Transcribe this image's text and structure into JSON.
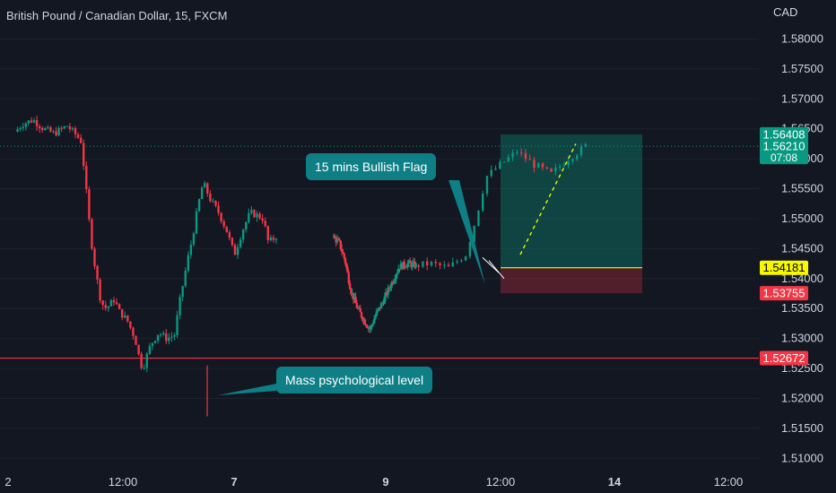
{
  "header": {
    "symbol_title": "British Pound / Canadian Dollar, 15, FXCM",
    "currency": "CAD"
  },
  "chart_data": {
    "type": "candlestick",
    "title": "British Pound / Canadian Dollar, 15, FXCM",
    "y_unit": "CAD",
    "ylim": [
      1.5075,
      1.5865
    ],
    "y_ticks": [
      "1.58000",
      "1.57500",
      "1.57000",
      "1.56500",
      "1.56000",
      "1.55500",
      "1.55000",
      "1.54500",
      "1.54000",
      "1.53500",
      "1.53000",
      "1.52500",
      "1.52000",
      "1.51500",
      "1.51000"
    ],
    "x_ticks": [
      "2",
      "12:00",
      "7",
      "9",
      "12:00",
      "14",
      "12:00"
    ],
    "price_path": [
      {
        "p": 0.0,
        "v": 1.5645
      },
      {
        "p": 0.03,
        "v": 1.5658
      },
      {
        "p": 0.07,
        "v": 1.5665
      },
      {
        "p": 0.11,
        "v": 1.565
      },
      {
        "p": 0.15,
        "v": 1.5642
      },
      {
        "p": 0.2,
        "v": 1.5655
      },
      {
        "p": 0.24,
        "v": 1.5637
      },
      {
        "p": 0.255,
        "v": 1.5628
      },
      {
        "p": 0.27,
        "v": 1.556
      },
      {
        "p": 0.29,
        "v": 1.547
      },
      {
        "p": 0.31,
        "v": 1.541
      },
      {
        "p": 0.33,
        "v": 1.536
      },
      {
        "p": 0.35,
        "v": 1.535
      },
      {
        "p": 0.38,
        "v": 1.5365
      },
      {
        "p": 0.4,
        "v": 1.5345
      },
      {
        "p": 0.43,
        "v": 1.533
      },
      {
        "p": 0.46,
        "v": 1.53
      },
      {
        "p": 0.48,
        "v": 1.526
      },
      {
        "p": 0.49,
        "v": 1.525
      },
      {
        "p": 0.5,
        "v": 1.5265
      },
      {
        "p": 0.52,
        "v": 1.529
      },
      {
        "p": 0.55,
        "v": 1.531
      },
      {
        "p": 0.58,
        "v": 1.53
      },
      {
        "p": 0.61,
        "v": 1.5305
      },
      {
        "p": 0.63,
        "v": 1.536
      },
      {
        "p": 0.66,
        "v": 1.543
      },
      {
        "p": 0.68,
        "v": 1.547
      },
      {
        "p": 0.7,
        "v": 1.552
      },
      {
        "p": 0.72,
        "v": 1.556
      },
      {
        "p": 0.75,
        "v": 1.553
      },
      {
        "p": 0.78,
        "v": 1.551
      },
      {
        "p": 0.81,
        "v": 1.548
      },
      {
        "p": 0.84,
        "v": 1.544
      },
      {
        "p": 0.87,
        "v": 1.548
      },
      {
        "p": 0.9,
        "v": 1.551
      },
      {
        "p": 0.93,
        "v": 1.5505
      },
      {
        "p": 0.95,
        "v": 1.55
      },
      {
        "p": 0.97,
        "v": 1.546
      },
      {
        "p": 1.0,
        "v": 1.547
      }
    ],
    "segments": [
      {
        "start": "2024-02-02T01:00",
        "end": "2024-02-06T18:00",
        "count": 95,
        "points": "p"
      },
      {
        "start": "2024-02-07T18:00",
        "end": "2024-02-09T06:00",
        "count": 72,
        "path": [
          {
            "p": 0.0,
            "v": 1.547
          },
          {
            "p": 0.08,
            "v": 1.546
          },
          {
            "p": 0.15,
            "v": 1.543
          },
          {
            "p": 0.22,
            "v": 1.538
          },
          {
            "p": 0.3,
            "v": 1.535
          },
          {
            "p": 0.38,
            "v": 1.533
          },
          {
            "p": 0.45,
            "v": 1.5315
          },
          {
            "p": 0.52,
            "v": 1.534
          },
          {
            "p": 0.6,
            "v": 1.536
          },
          {
            "p": 0.7,
            "v": 1.539
          },
          {
            "p": 0.8,
            "v": 1.542
          },
          {
            "p": 0.9,
            "v": 1.5425
          },
          {
            "p": 1.0,
            "v": 1.5422
          }
        ]
      },
      {
        "start": "2024-02-09T06:00",
        "end": "2024-02-12T08:00",
        "count": 40,
        "path": [
          {
            "p": 0.0,
            "v": 1.5422
          },
          {
            "p": 0.1,
            "v": 1.5425
          },
          {
            "p": 0.2,
            "v": 1.5418
          },
          {
            "p": 0.3,
            "v": 1.544
          },
          {
            "p": 0.36,
            "v": 1.55
          },
          {
            "p": 0.42,
            "v": 1.557
          },
          {
            "p": 0.5,
            "v": 1.559
          },
          {
            "p": 0.6,
            "v": 1.5612
          },
          {
            "p": 0.7,
            "v": 1.559
          },
          {
            "p": 0.8,
            "v": 1.5575
          },
          {
            "p": 0.9,
            "v": 1.56
          },
          {
            "p": 1.0,
            "v": 1.5621
          }
        ]
      }
    ],
    "current_price": "1.56210",
    "countdown": "07:08",
    "horizontal_levels": [
      {
        "value": 1.52672,
        "label": "1.52672",
        "color": "#f23645"
      }
    ],
    "position": {
      "entry": 1.54181,
      "entry_label": "1.54181",
      "target": 1.56408,
      "target_label": "1.56408",
      "stop": 1.53755,
      "stop_label": "1.53755"
    },
    "dotted_level": 1.5621,
    "annotations": [
      {
        "text": "15 mins Bullish Flag"
      },
      {
        "text": "Mass psychological level"
      }
    ]
  },
  "colors": {
    "background": "#131722",
    "up": "#089981",
    "down": "#f23645",
    "grid": "#1e222d",
    "axis_text": "#d1d4dc",
    "label_bg": "#0f7f86",
    "entry": "#f7f700",
    "target_zone": "rgba(8,153,129,0.35)",
    "stop_zone": "rgba(242,54,69,0.28)"
  }
}
